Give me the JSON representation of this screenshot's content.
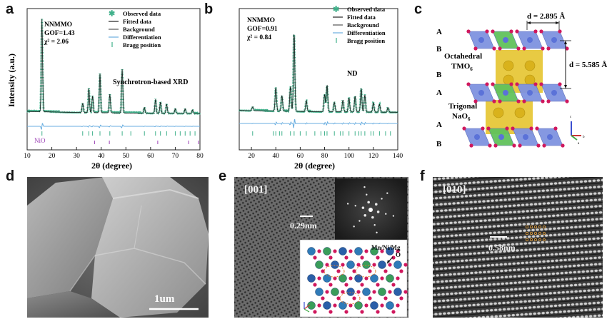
{
  "panels": {
    "a": "a",
    "b": "b",
    "c": "c",
    "d": "d",
    "e": "e",
    "f": "f"
  },
  "chart_data": [
    {
      "type": "line",
      "panel": "a",
      "title": "NNMMO",
      "fit_stats": [
        "GOF=1.43",
        "χ² = 2.06"
      ],
      "annotation": "Synchrotron-based XRD",
      "impurity_label": "NiO",
      "xlabel": "2θ (degree)",
      "ylabel": "Intensity (a.u.)",
      "xlim": [
        10,
        80
      ],
      "xticks": [
        "10",
        "20",
        "30",
        "40",
        "50",
        "60",
        "70",
        "80"
      ],
      "legend": [
        "Observed data",
        "Fitted data",
        "Background",
        "Differentiation",
        "Bragg position"
      ],
      "legend_colors": [
        "#3fb08a",
        "#222222",
        "#555555",
        "#6aaee0",
        "#3fb08a"
      ],
      "peaks": [
        {
          "x": 16.0,
          "y": 1.0
        },
        {
          "x": 32.5,
          "y": 0.1
        },
        {
          "x": 35.0,
          "y": 0.26
        },
        {
          "x": 36.5,
          "y": 0.18
        },
        {
          "x": 39.5,
          "y": 0.42
        },
        {
          "x": 43.5,
          "y": 0.2
        },
        {
          "x": 48.5,
          "y": 0.47
        },
        {
          "x": 57.5,
          "y": 0.06
        },
        {
          "x": 62.0,
          "y": 0.15
        },
        {
          "x": 64.0,
          "y": 0.12
        },
        {
          "x": 66.5,
          "y": 0.1
        },
        {
          "x": 70.0,
          "y": 0.05
        },
        {
          "x": 74.0,
          "y": 0.05
        },
        {
          "x": 77.0,
          "y": 0.04
        }
      ],
      "bragg_positions": [
        16,
        32.5,
        35,
        36.5,
        39.5,
        43.5,
        48.5,
        52,
        57.5,
        62,
        64,
        66.5,
        70,
        72,
        74,
        76,
        78
      ],
      "nio_positions": [
        37.3,
        43.3,
        62.9,
        75.4,
        79.4
      ]
    },
    {
      "type": "line",
      "panel": "b",
      "title": "NNMMO",
      "fit_stats": [
        "GOF=0.91",
        "χ² = 0.84"
      ],
      "annotation": "ND",
      "xlabel": "2θ (degree)",
      "xlim": [
        10,
        140
      ],
      "xticks": [
        "20",
        "40",
        "60",
        "80",
        "100",
        "120",
        "140"
      ],
      "legend": [
        "Observed data",
        "Fitted data",
        "Background",
        "Differentiation",
        "Bragg position"
      ],
      "legend_colors": [
        "#3fb08a",
        "#222222",
        "#555555",
        "#6aaee0",
        "#3fb08a"
      ],
      "peaks": [
        {
          "x": 21,
          "y": 0.05
        },
        {
          "x": 40,
          "y": 0.3
        },
        {
          "x": 45,
          "y": 0.2
        },
        {
          "x": 52,
          "y": 0.32
        },
        {
          "x": 55,
          "y": 1.0
        },
        {
          "x": 65,
          "y": 0.14
        },
        {
          "x": 80,
          "y": 0.22
        },
        {
          "x": 82,
          "y": 0.34
        },
        {
          "x": 88,
          "y": 0.12
        },
        {
          "x": 95,
          "y": 0.15
        },
        {
          "x": 100,
          "y": 0.18
        },
        {
          "x": 105,
          "y": 0.2
        },
        {
          "x": 110,
          "y": 0.3
        },
        {
          "x": 113,
          "y": 0.22
        },
        {
          "x": 120,
          "y": 0.12
        },
        {
          "x": 125,
          "y": 0.1
        },
        {
          "x": 132,
          "y": 0.06
        }
      ],
      "bragg_positions": [
        21,
        38,
        40,
        43,
        45,
        52,
        55,
        60,
        65,
        72,
        77,
        80,
        82,
        88,
        93,
        95,
        100,
        105,
        108,
        110,
        113,
        118,
        120,
        125,
        130,
        134
      ]
    }
  ],
  "structure": {
    "layers": [
      "A",
      "B",
      "B",
      "A",
      "A",
      "B"
    ],
    "labels": {
      "octahedral": "Octahedral",
      "tmo": "TMO",
      "tmo_sub": "6",
      "trigonal": "Trigonal",
      "nao": "NaO",
      "nao_sub": "6",
      "d_inplane": "d = 2.895 Å",
      "d_interlayer": "d = 5.585 Å"
    },
    "axes": {
      "a": "a",
      "b": "b",
      "c": "c"
    }
  },
  "sem": {
    "scale_bar": "1um"
  },
  "hrtem_e": {
    "zone_axis": "[001]",
    "d_spacing": "0.29nm",
    "site_label": "Mn/Ni/Mg",
    "o_label": "O"
  },
  "hrtem_f": {
    "zone_axis": "[010]",
    "d_spacing": "0.58nm"
  },
  "colors": {
    "observed": "#3fb08a",
    "diff": "#6aaee0",
    "octa_blue": "#7f93e0",
    "octa_green": "#61c25c",
    "prism_yellow": "#e6c42f",
    "oxygen": "#d0185d"
  }
}
